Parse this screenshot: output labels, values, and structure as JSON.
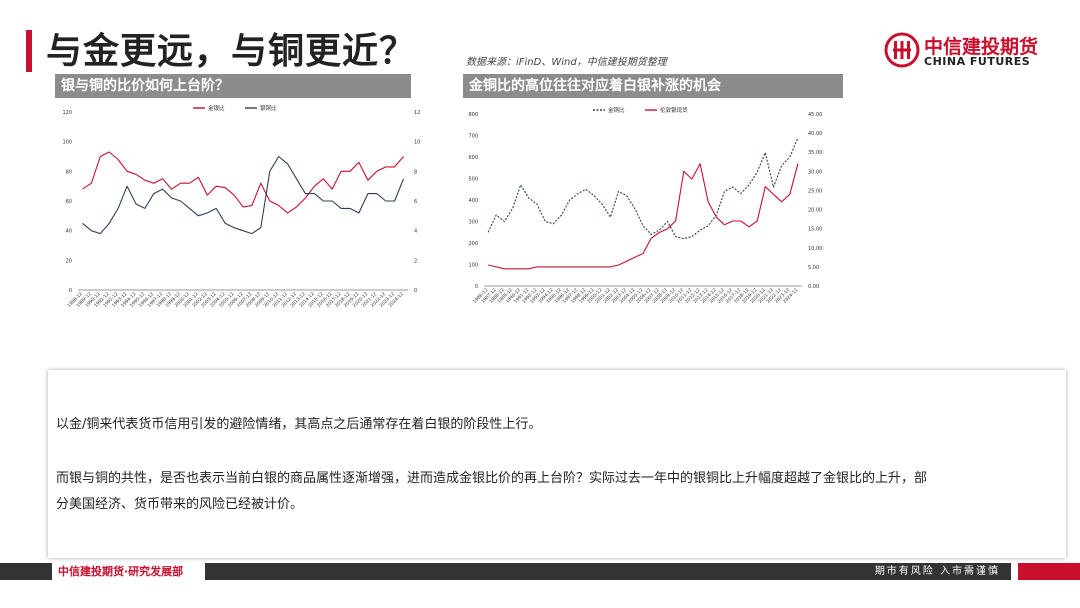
{
  "slide": {
    "title": "与金更远，与铜更近？",
    "source": "数据来源：iFinD、Wind，中信建投期货整理"
  },
  "brand": {
    "name_cn": "中信建投期货",
    "name_en": "CHINA FUTURES",
    "accent": "#c8102e"
  },
  "panels": [
    {
      "heading": "银与铜的比价如何上台阶？"
    },
    {
      "heading": "金铜比的高位往往对应着白银补涨的机会"
    }
  ],
  "chart_data": [
    {
      "type": "line",
      "title": "",
      "x": [
        "1988-12",
        "1989-12",
        "1990-12",
        "1991-12",
        "1992-12",
        "1993-12",
        "1994-12",
        "1995-12",
        "1996-12",
        "1997-12",
        "1998-12",
        "1999-12",
        "2000-12",
        "2001-12",
        "2002-12",
        "2003-12",
        "2004-12",
        "2005-12",
        "2006-12",
        "2007-12",
        "2008-12",
        "2009-12",
        "2010-12",
        "2011-12",
        "2012-12",
        "2013-12",
        "2014-12",
        "2015-12",
        "2016-12",
        "2017-12",
        "2018-12",
        "2019-12",
        "2020-12",
        "2021-12",
        "2022-12",
        "2023-12",
        "2024-12"
      ],
      "series": [
        {
          "name": "金银比",
          "axis": "left",
          "color": "#c8102e",
          "values": [
            68,
            72,
            90,
            93,
            88,
            80,
            78,
            74,
            72,
            75,
            68,
            72,
            72,
            76,
            64,
            70,
            69,
            64,
            56,
            57,
            72,
            60,
            57,
            52,
            56,
            62,
            70,
            75,
            68,
            80,
            80,
            86,
            74,
            80,
            83,
            83,
            90
          ]
        },
        {
          "name": "银铜比",
          "axis": "right",
          "color": "#2e3f5c",
          "values": [
            4.5,
            4.0,
            3.8,
            4.5,
            5.5,
            7.0,
            5.8,
            5.5,
            6.5,
            6.8,
            6.2,
            6.0,
            5.5,
            5.0,
            5.2,
            5.5,
            4.5,
            4.2,
            4.0,
            3.8,
            4.2,
            8.0,
            9.0,
            8.5,
            7.5,
            6.5,
            6.5,
            6.0,
            6.0,
            5.5,
            5.5,
            5.2,
            6.5,
            6.5,
            6.0,
            6.0,
            7.5
          ]
        }
      ],
      "ylim_left": [
        0,
        120
      ],
      "yticks_left": [
        0,
        20,
        40,
        60,
        80,
        100,
        120
      ],
      "ylim_right": [
        0,
        12
      ],
      "yticks_right": [
        0,
        2,
        4,
        6,
        8,
        10,
        12
      ],
      "legend_position": "top"
    },
    {
      "type": "line",
      "title": "",
      "x": [
        "1986-12",
        "1987-12",
        "1988-12",
        "1989-12",
        "1990-12",
        "1991-12",
        "1992-12",
        "1993-12",
        "1994-12",
        "1995-12",
        "1996-12",
        "1997-12",
        "1998-12",
        "1999-12",
        "2000-12",
        "2001-12",
        "2002-12",
        "2003-12",
        "2004-12",
        "2005-12",
        "2006-12",
        "2007-12",
        "2008-12",
        "2009-12",
        "2010-12",
        "2011-12",
        "2012-12",
        "2013-12",
        "2014-12",
        "2015-12",
        "2016-12",
        "2017-12",
        "2018-12",
        "2019-12",
        "2020-12",
        "2021-12",
        "2022-12",
        "2023-12",
        "2024-12"
      ],
      "series": [
        {
          "name": "金铜比",
          "axis": "left",
          "color": "#2e3f5c",
          "dash": true,
          "values": [
            250,
            330,
            300,
            360,
            470,
            410,
            380,
            300,
            290,
            330,
            400,
            430,
            450,
            420,
            380,
            320,
            440,
            420,
            360,
            280,
            240,
            260,
            300,
            230,
            220,
            230,
            260,
            280,
            330,
            440,
            460,
            430,
            470,
            530,
            620,
            460,
            560,
            600,
            690
          ]
        },
        {
          "name": "伦敦银现货",
          "axis": "right",
          "color": "#c8102e",
          "values": [
            5.5,
            5.0,
            4.5,
            4.5,
            4.5,
            4.5,
            5.0,
            5.0,
            5.0,
            5.0,
            5.0,
            5.0,
            5.0,
            5.0,
            5.0,
            5.0,
            5.5,
            6.5,
            7.5,
            8.5,
            12.5,
            14.0,
            15.0,
            17.0,
            30.0,
            28.0,
            32.0,
            22.0,
            18.0,
            16.0,
            17.0,
            17.0,
            15.5,
            17.0,
            26.0,
            24.0,
            22.0,
            24.0,
            32.0
          ]
        }
      ],
      "ylim_left": [
        0,
        800
      ],
      "yticks_left": [
        0,
        100,
        200,
        300,
        400,
        500,
        600,
        700,
        800
      ],
      "ylim_right": [
        0,
        45
      ],
      "yticks_right": [
        "0.00",
        "5.00",
        "10.00",
        "15.00",
        "20.00",
        "25.00",
        "30.00",
        "35.00",
        "40.00",
        "45.00"
      ],
      "legend_position": "top"
    }
  ],
  "commentary": {
    "p1": "以金/铜来代表货币信用引发的避险情绪，其高点之后通常存在着白银的阶段性上行。",
    "p2a": "而银与铜的共性，是否也表示当前白银的商品属性逐渐增强，进而造成金银比价的再上台阶？实际过去一年中的银铜比上升幅度超越了金银比的上升，部",
    "p2b": "分美国经济、货币带来的风险已经被计价。"
  },
  "footer": {
    "dept": "中信建投期货·研究发展部",
    "risk": "期市有风险  入市需谨慎"
  }
}
